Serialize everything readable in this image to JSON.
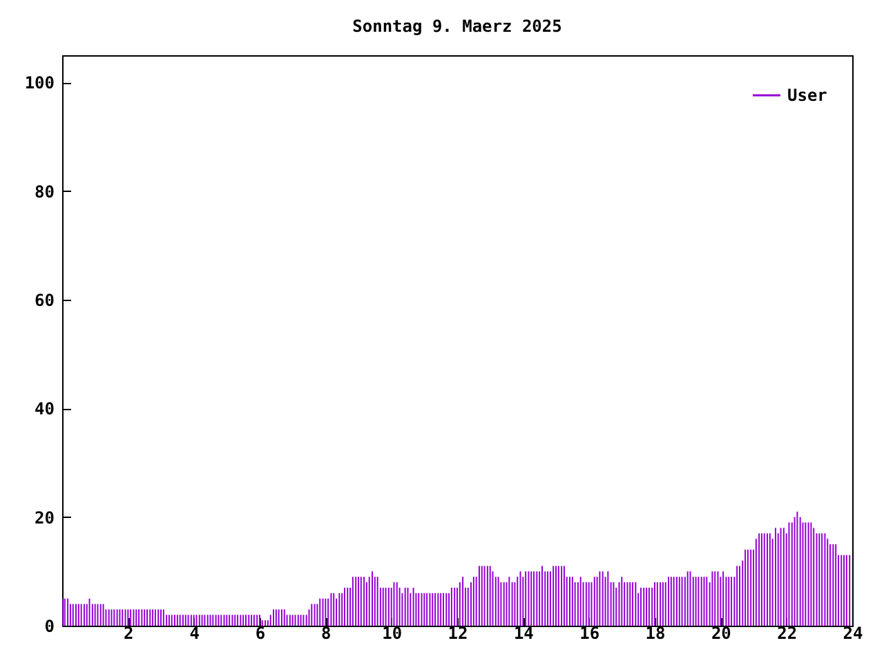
{
  "chart_data": {
    "type": "bar",
    "title": "Sonntag 9. Maerz 2025",
    "x": [
      0,
      0.08,
      0.17,
      0.25,
      0.33,
      0.42,
      0.5,
      0.58,
      0.67,
      0.75,
      0.83,
      0.92,
      1,
      1.08,
      1.17,
      1.25,
      1.33,
      1.42,
      1.5,
      1.58,
      1.67,
      1.75,
      1.83,
      1.92,
      2,
      2.08,
      2.17,
      2.25,
      2.33,
      2.42,
      2.5,
      2.58,
      2.67,
      2.75,
      2.83,
      2.92,
      3,
      3.08,
      3.17,
      3.25,
      3.33,
      3.42,
      3.5,
      3.58,
      3.67,
      3.75,
      3.83,
      3.92,
      4,
      4.08,
      4.17,
      4.25,
      4.33,
      4.42,
      4.5,
      4.58,
      4.67,
      4.75,
      4.83,
      4.92,
      5,
      5.08,
      5.17,
      5.25,
      5.33,
      5.42,
      5.5,
      5.58,
      5.67,
      5.75,
      5.83,
      5.92,
      6,
      6.08,
      6.17,
      6.25,
      6.33,
      6.42,
      6.5,
      6.58,
      6.67,
      6.75,
      6.83,
      6.92,
      7,
      7.08,
      7.17,
      7.25,
      7.33,
      7.42,
      7.5,
      7.58,
      7.67,
      7.75,
      7.83,
      7.92,
      8,
      8.08,
      8.17,
      8.25,
      8.33,
      8.42,
      8.5,
      8.58,
      8.67,
      8.75,
      8.83,
      8.92,
      9,
      9.08,
      9.17,
      9.25,
      9.33,
      9.42,
      9.5,
      9.58,
      9.67,
      9.75,
      9.83,
      9.92,
      10,
      10.08,
      10.17,
      10.25,
      10.33,
      10.42,
      10.5,
      10.58,
      10.67,
      10.75,
      10.83,
      10.92,
      11,
      11.08,
      11.17,
      11.25,
      11.33,
      11.42,
      11.5,
      11.58,
      11.67,
      11.75,
      11.83,
      11.92,
      12,
      12.08,
      12.17,
      12.25,
      12.33,
      12.42,
      12.5,
      12.58,
      12.67,
      12.75,
      12.83,
      12.92,
      13,
      13.08,
      13.17,
      13.25,
      13.33,
      13.42,
      13.5,
      13.58,
      13.67,
      13.75,
      13.83,
      13.92,
      14,
      14.08,
      14.17,
      14.25,
      14.33,
      14.42,
      14.5,
      14.58,
      14.67,
      14.75,
      14.83,
      14.92,
      15,
      15.08,
      15.17,
      15.25,
      15.33,
      15.42,
      15.5,
      15.58,
      15.67,
      15.75,
      15.83,
      15.92,
      16,
      16.08,
      16.17,
      16.25,
      16.33,
      16.42,
      16.5,
      16.58,
      16.67,
      16.75,
      16.83,
      16.92,
      17,
      17.08,
      17.17,
      17.25,
      17.33,
      17.42,
      17.5,
      17.58,
      17.67,
      17.75,
      17.83,
      17.92,
      18,
      18.08,
      18.17,
      18.25,
      18.33,
      18.42,
      18.5,
      18.58,
      18.67,
      18.75,
      18.83,
      18.92,
      19,
      19.08,
      19.17,
      19.25,
      19.33,
      19.42,
      19.5,
      19.58,
      19.67,
      19.75,
      19.83,
      19.92,
      20,
      20.08,
      20.17,
      20.25,
      20.33,
      20.42,
      20.5,
      20.58,
      20.67,
      20.75,
      20.83,
      20.92,
      21,
      21.08,
      21.17,
      21.25,
      21.33,
      21.42,
      21.5,
      21.58,
      21.67,
      21.75,
      21.83,
      21.92,
      22,
      22.08,
      22.17,
      22.25,
      22.33,
      22.42,
      22.5,
      22.58,
      22.67,
      22.75,
      22.83,
      22.92,
      23,
      23.08,
      23.17,
      23.25,
      23.33,
      23.42,
      23.5,
      23.58,
      23.67,
      23.75,
      23.83,
      23.92
    ],
    "series": [
      {
        "name": "User",
        "color": "#9400d3",
        "values": [
          5,
          5,
          5,
          4,
          4,
          4,
          4,
          4,
          4,
          4,
          5,
          4,
          4,
          4,
          4,
          4,
          3,
          3,
          3,
          3,
          3,
          3,
          3,
          3,
          3,
          3,
          3,
          3,
          3,
          3,
          3,
          3,
          3,
          3,
          3,
          3,
          3,
          3,
          2,
          2,
          2,
          2,
          2,
          2,
          2,
          2,
          2,
          2,
          2,
          2,
          2,
          2,
          2,
          2,
          2,
          2,
          2,
          2,
          2,
          2,
          2,
          2,
          2,
          2,
          2,
          2,
          2,
          2,
          2,
          2,
          2,
          2,
          2,
          1,
          1,
          1,
          2,
          3,
          3,
          3,
          3,
          3,
          2,
          2,
          2,
          2,
          2,
          2,
          2,
          2,
          3,
          4,
          4,
          4,
          5,
          5,
          5,
          5,
          6,
          6,
          5,
          6,
          6,
          7,
          7,
          7,
          9,
          9,
          9,
          9,
          9,
          8,
          9,
          10,
          9,
          9,
          7,
          7,
          7,
          7,
          7,
          8,
          8,
          7,
          6,
          7,
          7,
          6,
          7,
          6,
          6,
          6,
          6,
          6,
          6,
          6,
          6,
          6,
          6,
          6,
          6,
          6,
          7,
          7,
          7,
          8,
          9,
          7,
          7,
          8,
          9,
          9,
          11,
          11,
          11,
          11,
          11,
          10,
          9,
          9,
          8,
          8,
          8,
          9,
          8,
          8,
          9,
          10,
          9,
          10,
          10,
          10,
          10,
          10,
          10,
          11,
          10,
          10,
          10,
          11,
          11,
          11,
          11,
          11,
          9,
          9,
          9,
          8,
          8,
          9,
          8,
          8,
          8,
          8,
          9,
          9,
          10,
          10,
          9,
          10,
          8,
          8,
          7,
          8,
          9,
          8,
          8,
          8,
          8,
          8,
          6,
          7,
          7,
          7,
          7,
          7,
          8,
          8,
          8,
          8,
          8,
          9,
          9,
          9,
          9,
          9,
          9,
          9,
          10,
          10,
          9,
          9,
          9,
          9,
          9,
          9,
          8,
          10,
          10,
          10,
          9,
          10,
          9,
          9,
          9,
          9,
          11,
          11,
          12,
          14,
          14,
          14,
          14,
          16,
          17,
          17,
          17,
          17,
          17,
          16,
          18,
          17,
          18,
          18,
          17,
          19,
          19,
          20,
          21,
          20,
          19,
          19,
          19,
          19,
          18,
          17,
          17,
          17,
          17,
          16,
          15,
          15,
          15,
          13,
          13,
          13,
          13,
          13
        ]
      }
    ],
    "xlim": [
      0,
      24
    ],
    "xticks": [
      2,
      4,
      6,
      8,
      10,
      12,
      14,
      16,
      18,
      20,
      22,
      24
    ],
    "ylim": [
      0,
      105
    ],
    "yticks": [
      0,
      20,
      40,
      60,
      80,
      100
    ],
    "grid": false,
    "legend": "top right"
  }
}
